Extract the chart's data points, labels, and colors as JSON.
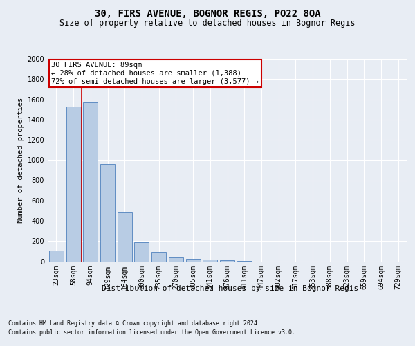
{
  "title": "30, FIRS AVENUE, BOGNOR REGIS, PO22 8QA",
  "subtitle": "Size of property relative to detached houses in Bognor Regis",
  "xlabel": "Distribution of detached houses by size in Bognor Regis",
  "ylabel": "Number of detached properties",
  "bar_color": "#b8cce4",
  "bar_edge_color": "#4e81bd",
  "categories": [
    "23sqm",
    "58sqm",
    "94sqm",
    "129sqm",
    "164sqm",
    "200sqm",
    "235sqm",
    "270sqm",
    "305sqm",
    "341sqm",
    "376sqm",
    "411sqm",
    "447sqm",
    "482sqm",
    "517sqm",
    "553sqm",
    "588sqm",
    "623sqm",
    "659sqm",
    "694sqm",
    "729sqm"
  ],
  "values": [
    105,
    1530,
    1570,
    960,
    480,
    185,
    95,
    40,
    25,
    18,
    8,
    3,
    0,
    0,
    0,
    0,
    0,
    0,
    0,
    0,
    0
  ],
  "ylim": [
    0,
    2000
  ],
  "yticks": [
    0,
    200,
    400,
    600,
    800,
    1000,
    1200,
    1400,
    1600,
    1800,
    2000
  ],
  "property_label": "30 FIRS AVENUE: 89sqm",
  "annotation_line1": "← 28% of detached houses are smaller (1,388)",
  "annotation_line2": "72% of semi-detached houses are larger (3,577) →",
  "vline_x": 1.5,
  "footer_line1": "Contains HM Land Registry data © Crown copyright and database right 2024.",
  "footer_line2": "Contains public sector information licensed under the Open Government Licence v3.0.",
  "background_color": "#e8edf4",
  "grid_color": "#ffffff",
  "annotation_box_color": "#ffffff",
  "annotation_box_edge": "#cc0000",
  "vline_color": "#cc0000",
  "title_fontsize": 10,
  "subtitle_fontsize": 8.5,
  "ylabel_fontsize": 7.5,
  "xlabel_fontsize": 8,
  "tick_fontsize": 7,
  "annotation_fontsize": 7.5,
  "footer_fontsize": 6
}
